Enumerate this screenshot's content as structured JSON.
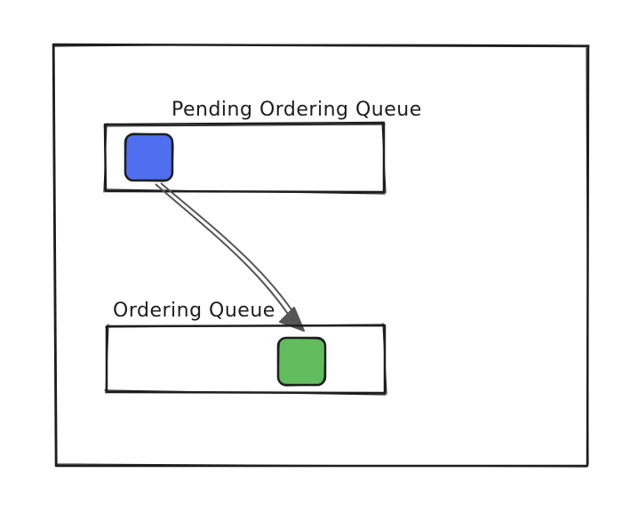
{
  "labels": {
    "pending_queue": "Pending Ordering Queue",
    "ordering_queue": "Ordering Queue"
  },
  "colors": {
    "background": "#ffffff",
    "stroke": "#1e1e1e",
    "pending_item": "#4f6ff0",
    "ordered_item": "#62bd5e",
    "arrow": "#555555"
  }
}
